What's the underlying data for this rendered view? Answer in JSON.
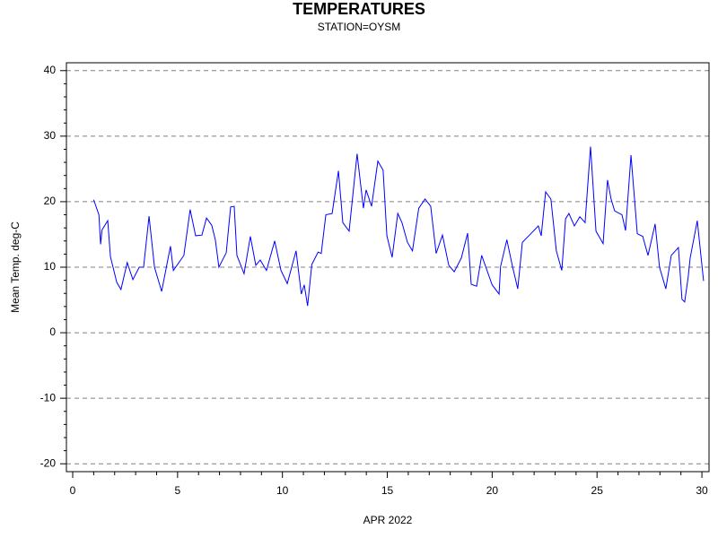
{
  "chart_data": {
    "type": "line",
    "title": "TEMPERATURES",
    "subtitle": "STATION=OYSM",
    "x_label": "APR 2022",
    "y_label": "Mean Temp. deg-C",
    "color": "#0000ff",
    "x": [
      1.0,
      1.25,
      1.33,
      1.4,
      1.67,
      1.8,
      2.1,
      2.3,
      2.6,
      2.87,
      3.17,
      3.38,
      3.64,
      3.9,
      4.24,
      4.66,
      4.8,
      5.3,
      5.6,
      5.86,
      6.16,
      6.38,
      6.63,
      6.8,
      6.97,
      7.32,
      7.53,
      7.7,
      7.83,
      8.17,
      8.47,
      8.73,
      8.94,
      9.24,
      9.63,
      9.93,
      10.23,
      10.65,
      10.9,
      11.04,
      11.2,
      11.4,
      11.7,
      11.85,
      12.07,
      12.37,
      12.67,
      12.88,
      13.18,
      13.56,
      13.86,
      13.99,
      14.25,
      14.55,
      14.8,
      14.98,
      15.23,
      15.5,
      15.7,
      15.96,
      16.2,
      16.5,
      16.8,
      17.07,
      17.33,
      17.63,
      17.93,
      18.19,
      18.53,
      18.83,
      19.0,
      19.26,
      19.5,
      20.0,
      20.33,
      20.4,
      20.7,
      20.97,
      21.22,
      21.44,
      21.78,
      22.2,
      22.34,
      22.55,
      22.8,
      23.06,
      23.32,
      23.5,
      23.66,
      23.92,
      24.18,
      24.43,
      24.69,
      24.95,
      25.29,
      25.5,
      25.67,
      25.84,
      26.19,
      26.36,
      26.62,
      26.92,
      27.18,
      27.43,
      27.77,
      27.98,
      28.28,
      28.54,
      28.88,
      29.05,
      29.18,
      29.35,
      29.44,
      29.78,
      30.08
    ],
    "values": [
      20.3,
      18,
      13.5,
      15.7,
      17.1,
      11.6,
      7.7,
      6.6,
      10.7,
      8.1,
      10,
      10,
      17.8,
      10,
      6.3,
      13.2,
      9.5,
      11.8,
      18.8,
      14.8,
      14.9,
      17.5,
      16.4,
      14.2,
      10,
      12.2,
      19.2,
      19.3,
      11.8,
      9,
      14.7,
      10.3,
      11.1,
      9.5,
      14,
      9.5,
      7.5,
      12.5,
      5.9,
      7.3,
      4.1,
      10.4,
      12.3,
      12.1,
      18,
      18.2,
      24.7,
      16.8,
      15.5,
      27.3,
      19,
      21.8,
      19.3,
      26.2,
      24.8,
      14.8,
      11.5,
      18.2,
      16.8,
      13.8,
      12.5,
      19,
      20.4,
      19.3,
      12.1,
      14.9,
      10.3,
      9.3,
      11.4,
      15.2,
      7.4,
      7.1,
      11.8,
      7.3,
      5.9,
      10.1,
      14.2,
      10.1,
      6.7,
      13.8,
      14.9,
      16.3,
      14.8,
      21.5,
      20.4,
      12.5,
      9.5,
      17.4,
      18.2,
      16.3,
      17.7,
      16.8,
      28.4,
      15.5,
      13.6,
      23.3,
      20.4,
      18.6,
      18,
      15.6,
      27.1,
      15.1,
      14.7,
      11.8,
      16.6,
      10,
      6.7,
      11.8,
      13,
      5.1,
      4.7,
      8.6,
      11.4,
      17.1,
      7.9
    ],
    "xlim": [
      -0.3,
      30.34
    ],
    "ylim": [
      -21.2,
      41.2
    ],
    "xticks": [
      0,
      5,
      10,
      15,
      20,
      25,
      30
    ],
    "xminorticks": [
      1,
      2,
      3,
      4,
      6,
      7,
      8,
      9,
      11,
      12,
      13,
      14,
      16,
      17,
      18,
      19,
      21,
      22,
      23,
      24,
      26,
      27,
      28,
      29
    ],
    "yticks": [
      -20,
      -10,
      0,
      10,
      20,
      30,
      40
    ],
    "yminorticks": [
      -18,
      -16,
      -14,
      -12,
      -8,
      -6,
      -4,
      -2,
      2,
      4,
      6,
      8,
      12,
      14,
      16,
      18,
      22,
      24,
      26,
      28,
      32,
      34,
      36,
      38
    ],
    "grid": true
  }
}
